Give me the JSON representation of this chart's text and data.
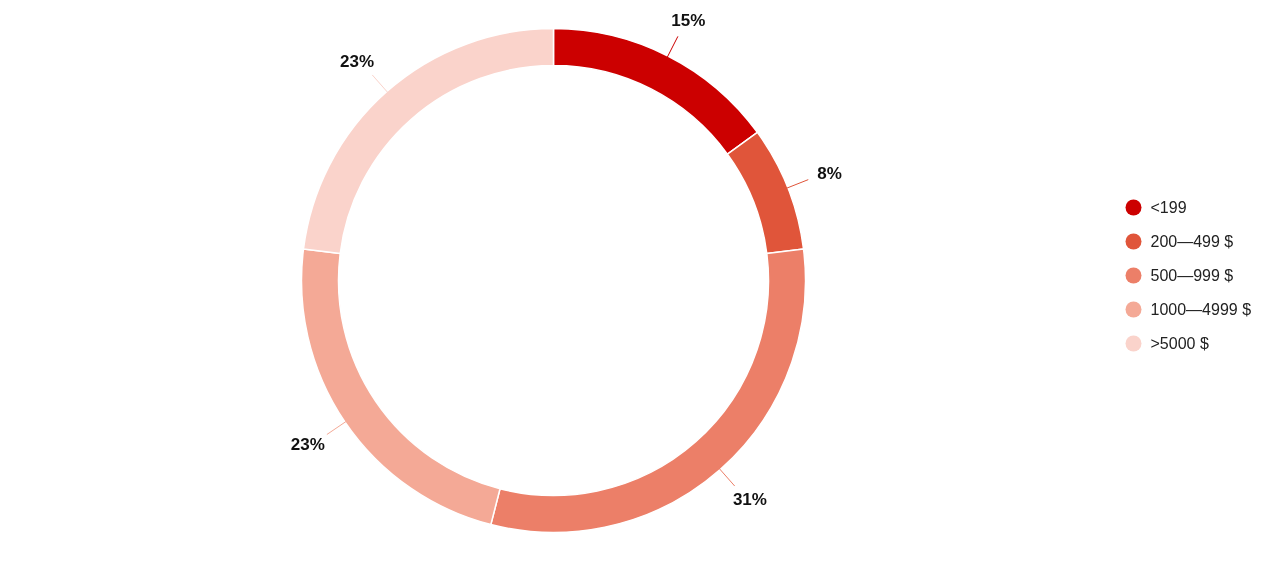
{
  "chart_data": {
    "type": "donut",
    "categories": [
      "<199",
      "200—499 $",
      "500—999 $",
      "1000—4999 $",
      ">5000 $"
    ],
    "values": [
      15,
      8,
      31,
      23,
      23
    ],
    "value_labels": [
      "15%",
      "8%",
      "31%",
      "23%",
      "23%"
    ],
    "colors": [
      "#cc0000",
      "#e0553a",
      "#ec7f68",
      "#f4a996",
      "#fad3cb"
    ],
    "legend": "right"
  }
}
